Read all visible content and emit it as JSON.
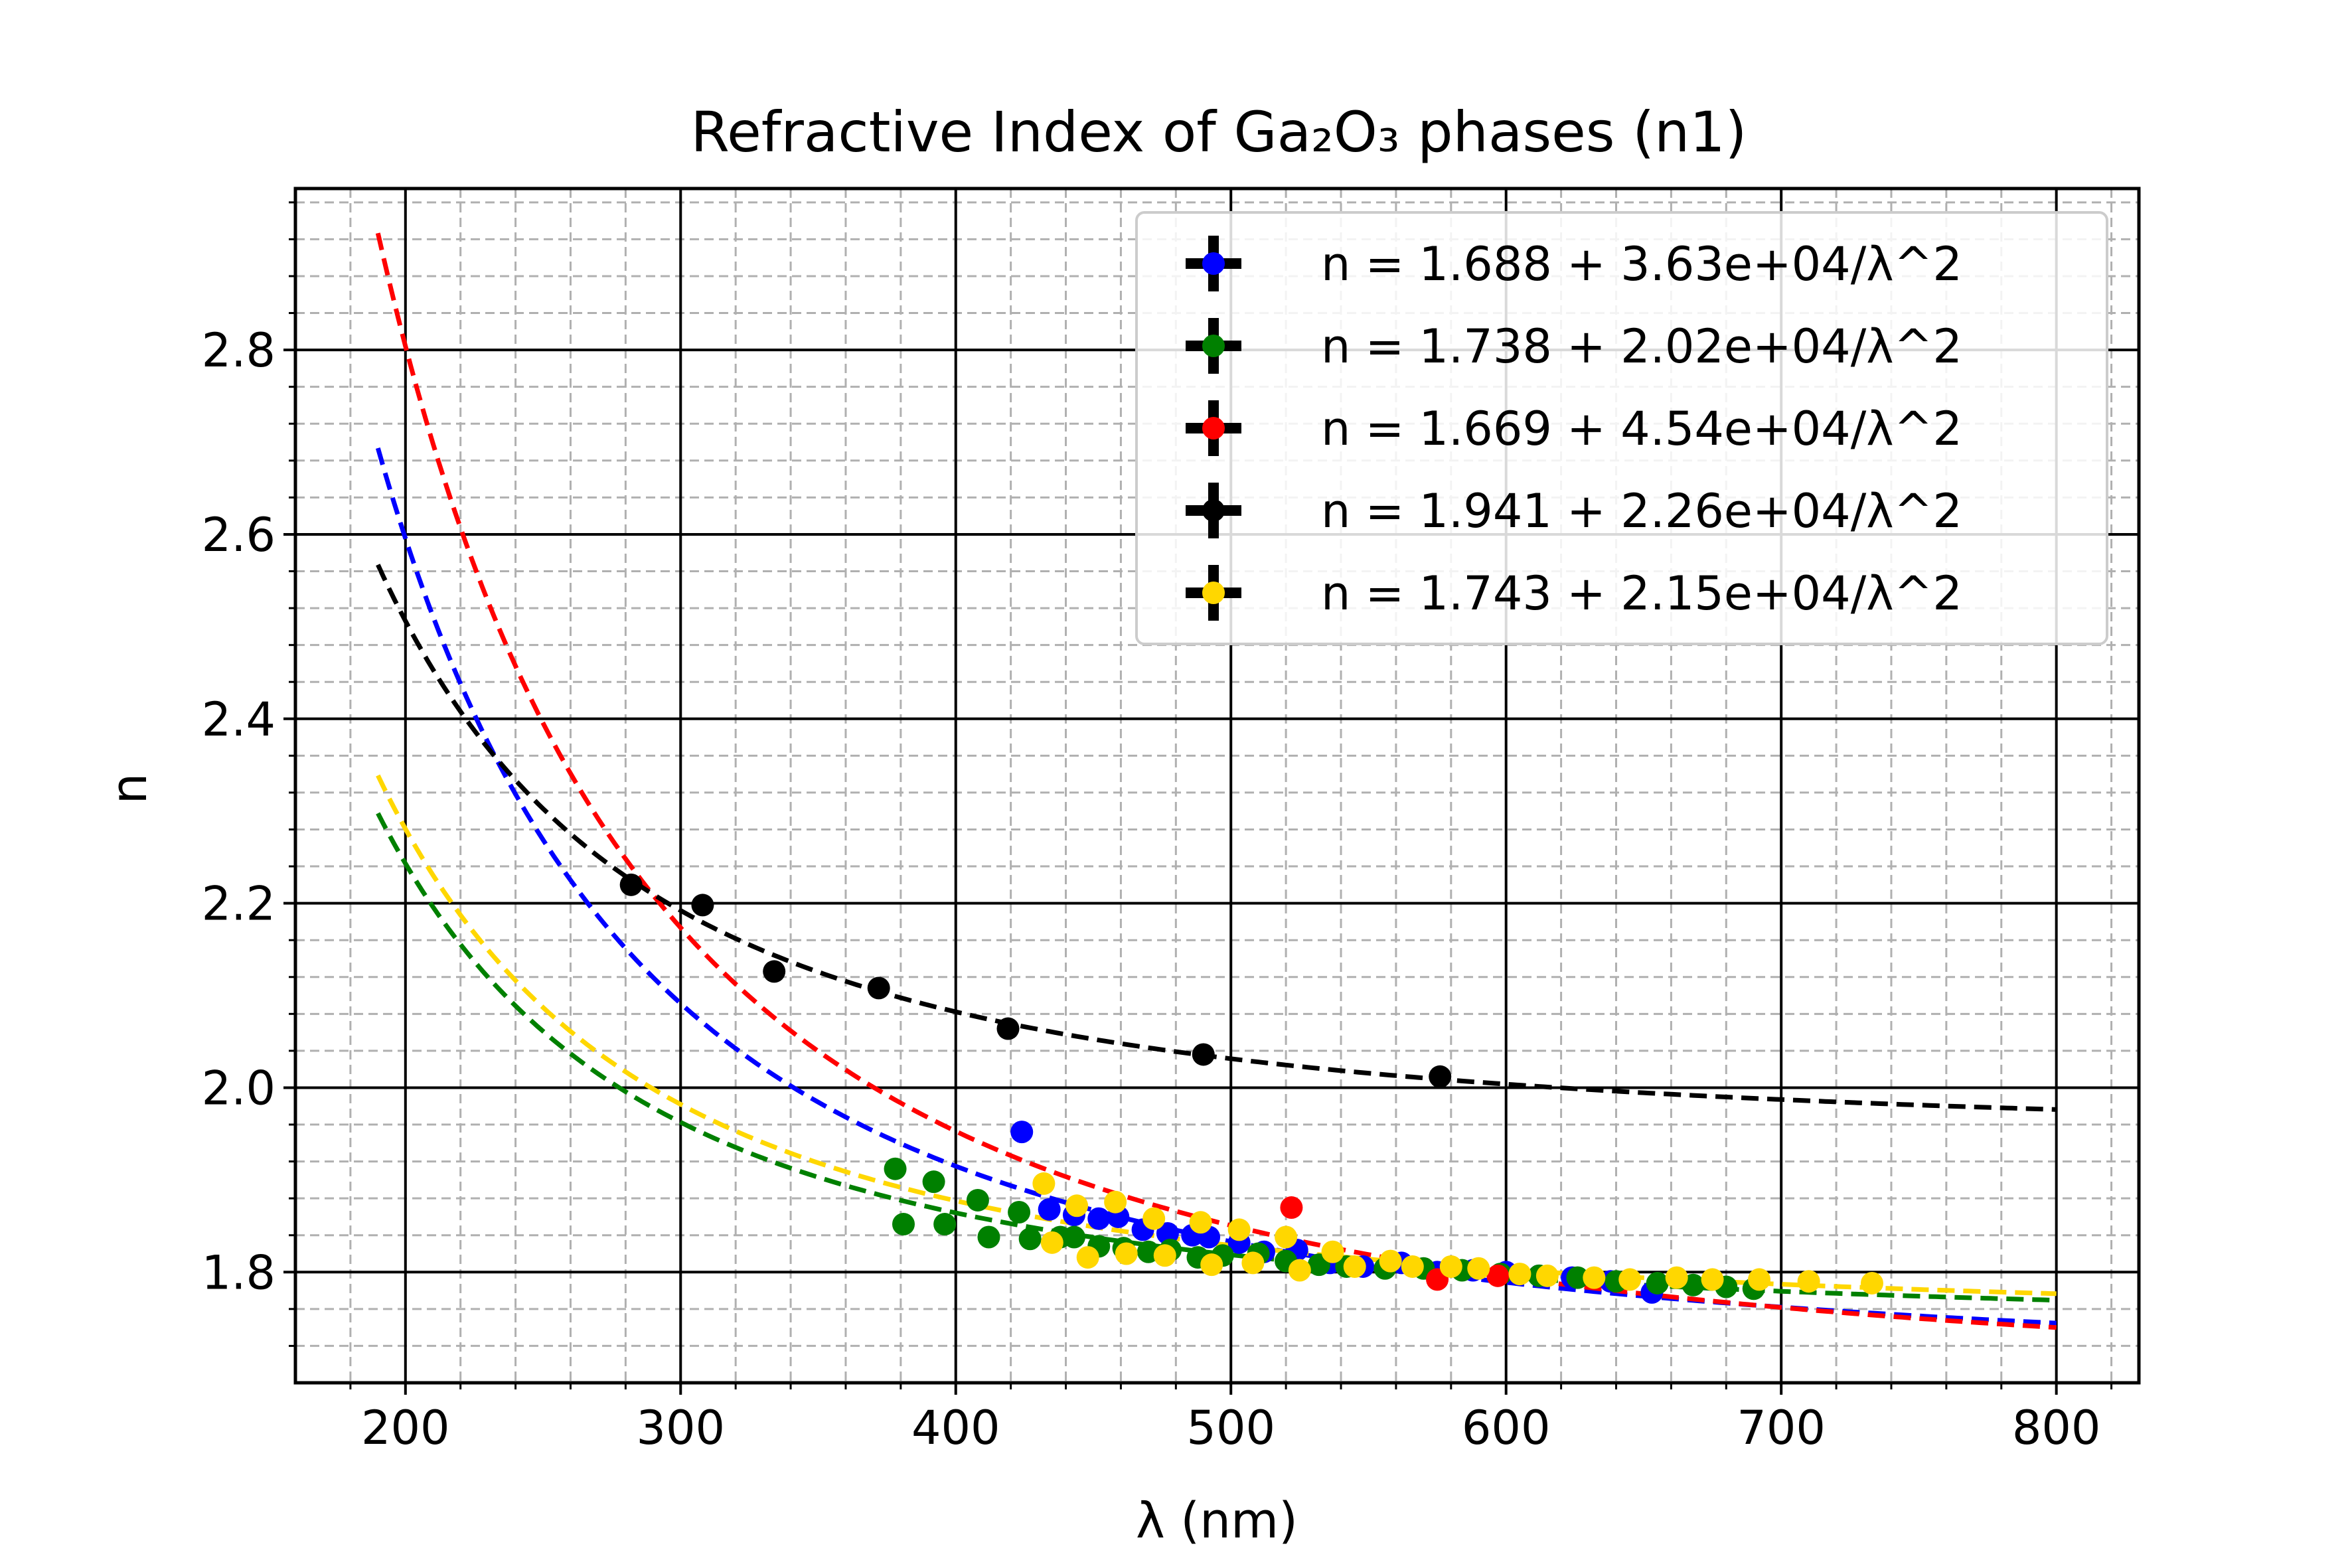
{
  "chart_data": {
    "type": "scatter",
    "title": "Refractive Index of Ga₂O₃ phases (n1)",
    "xlabel": "λ (nm)",
    "ylabel": "n",
    "xlim": [
      160,
      830
    ],
    "ylim": [
      1.68,
      2.975
    ],
    "x_ticks": [
      200,
      300,
      400,
      500,
      600,
      700,
      800
    ],
    "y_ticks": [
      1.8,
      2.0,
      2.2,
      2.4,
      2.6,
      2.8
    ],
    "x_tick_labels": [
      "200",
      "300",
      "400",
      "500",
      "600",
      "700",
      "800"
    ],
    "y_tick_labels": [
      "1.8",
      "2.0",
      "2.2",
      "2.4",
      "2.6",
      "2.8"
    ],
    "grid": "on (major solid black, minor dashed gray)",
    "legend_position": "top-right",
    "fit_range": [
      190,
      800
    ],
    "series": [
      {
        "name": "n = 1.688 + 3.63e+04/λ^2",
        "color": "#0000ff",
        "A": 1.688,
        "B": 36300,
        "points": [
          [
            424,
            1.952
          ],
          [
            434,
            1.868
          ],
          [
            443,
            1.862
          ],
          [
            452,
            1.858
          ],
          [
            459,
            1.86
          ],
          [
            468,
            1.846
          ],
          [
            477,
            1.842
          ],
          [
            486,
            1.84
          ],
          [
            492,
            1.838
          ],
          [
            503,
            1.832
          ],
          [
            512,
            1.822
          ],
          [
            524,
            1.824
          ],
          [
            536,
            1.81
          ],
          [
            548,
            1.806
          ],
          [
            562,
            1.81
          ],
          [
            575,
            1.8
          ],
          [
            588,
            1.802
          ],
          [
            600,
            1.8
          ],
          [
            612,
            1.796
          ],
          [
            624,
            1.794
          ],
          [
            638,
            1.79
          ],
          [
            653,
            1.778
          ]
        ]
      },
      {
        "name": "n = 1.738 + 2.02e+04/λ^2",
        "color": "#008000",
        "A": 1.738,
        "B": 20200,
        "points": [
          [
            378,
            1.912
          ],
          [
            381,
            1.852
          ],
          [
            392,
            1.898
          ],
          [
            396,
            1.852
          ],
          [
            408,
            1.878
          ],
          [
            412,
            1.838
          ],
          [
            423,
            1.865
          ],
          [
            427,
            1.836
          ],
          [
            438,
            1.838
          ],
          [
            443,
            1.838
          ],
          [
            452,
            1.828
          ],
          [
            461,
            1.826
          ],
          [
            470,
            1.822
          ],
          [
            478,
            1.824
          ],
          [
            488,
            1.816
          ],
          [
            497,
            1.818
          ],
          [
            510,
            1.82
          ],
          [
            520,
            1.812
          ],
          [
            532,
            1.808
          ],
          [
            542,
            1.806
          ],
          [
            556,
            1.804
          ],
          [
            570,
            1.804
          ],
          [
            584,
            1.802
          ],
          [
            598,
            1.798
          ],
          [
            612,
            1.796
          ],
          [
            626,
            1.794
          ],
          [
            640,
            1.79
          ],
          [
            655,
            1.788
          ],
          [
            668,
            1.786
          ],
          [
            680,
            1.784
          ],
          [
            690,
            1.782
          ]
        ]
      },
      {
        "name": "n = 1.669 + 4.54e+04/λ^2",
        "color": "#ff0000",
        "A": 1.669,
        "B": 45400,
        "points": [
          [
            522,
            1.87
          ],
          [
            575,
            1.792
          ],
          [
            597,
            1.796
          ]
        ]
      },
      {
        "name": "n = 1.941 + 2.26e+04/λ^2",
        "color": "#000000",
        "A": 1.941,
        "B": 22600,
        "points": [
          [
            282,
            2.22
          ],
          [
            308,
            2.198
          ],
          [
            334,
            2.126
          ],
          [
            372,
            2.108
          ],
          [
            419,
            2.064
          ],
          [
            490,
            2.036
          ],
          [
            576,
            2.012
          ]
        ]
      },
      {
        "name": "n = 1.743 + 2.15e+04/λ^2",
        "color": "#ffd700",
        "A": 1.743,
        "B": 21500,
        "points": [
          [
            432,
            1.896
          ],
          [
            435,
            1.832
          ],
          [
            444,
            1.872
          ],
          [
            448,
            1.816
          ],
          [
            458,
            1.876
          ],
          [
            462,
            1.82
          ],
          [
            472,
            1.858
          ],
          [
            476,
            1.818
          ],
          [
            489,
            1.854
          ],
          [
            493,
            1.808
          ],
          [
            503,
            1.846
          ],
          [
            508,
            1.81
          ],
          [
            520,
            1.838
          ],
          [
            525,
            1.802
          ],
          [
            537,
            1.822
          ],
          [
            545,
            1.806
          ],
          [
            558,
            1.812
          ],
          [
            566,
            1.806
          ],
          [
            580,
            1.806
          ],
          [
            590,
            1.804
          ],
          [
            605,
            1.798
          ],
          [
            615,
            1.796
          ],
          [
            632,
            1.794
          ],
          [
            645,
            1.792
          ],
          [
            662,
            1.794
          ],
          [
            675,
            1.792
          ],
          [
            692,
            1.792
          ],
          [
            710,
            1.79
          ],
          [
            733,
            1.788
          ]
        ]
      }
    ]
  }
}
